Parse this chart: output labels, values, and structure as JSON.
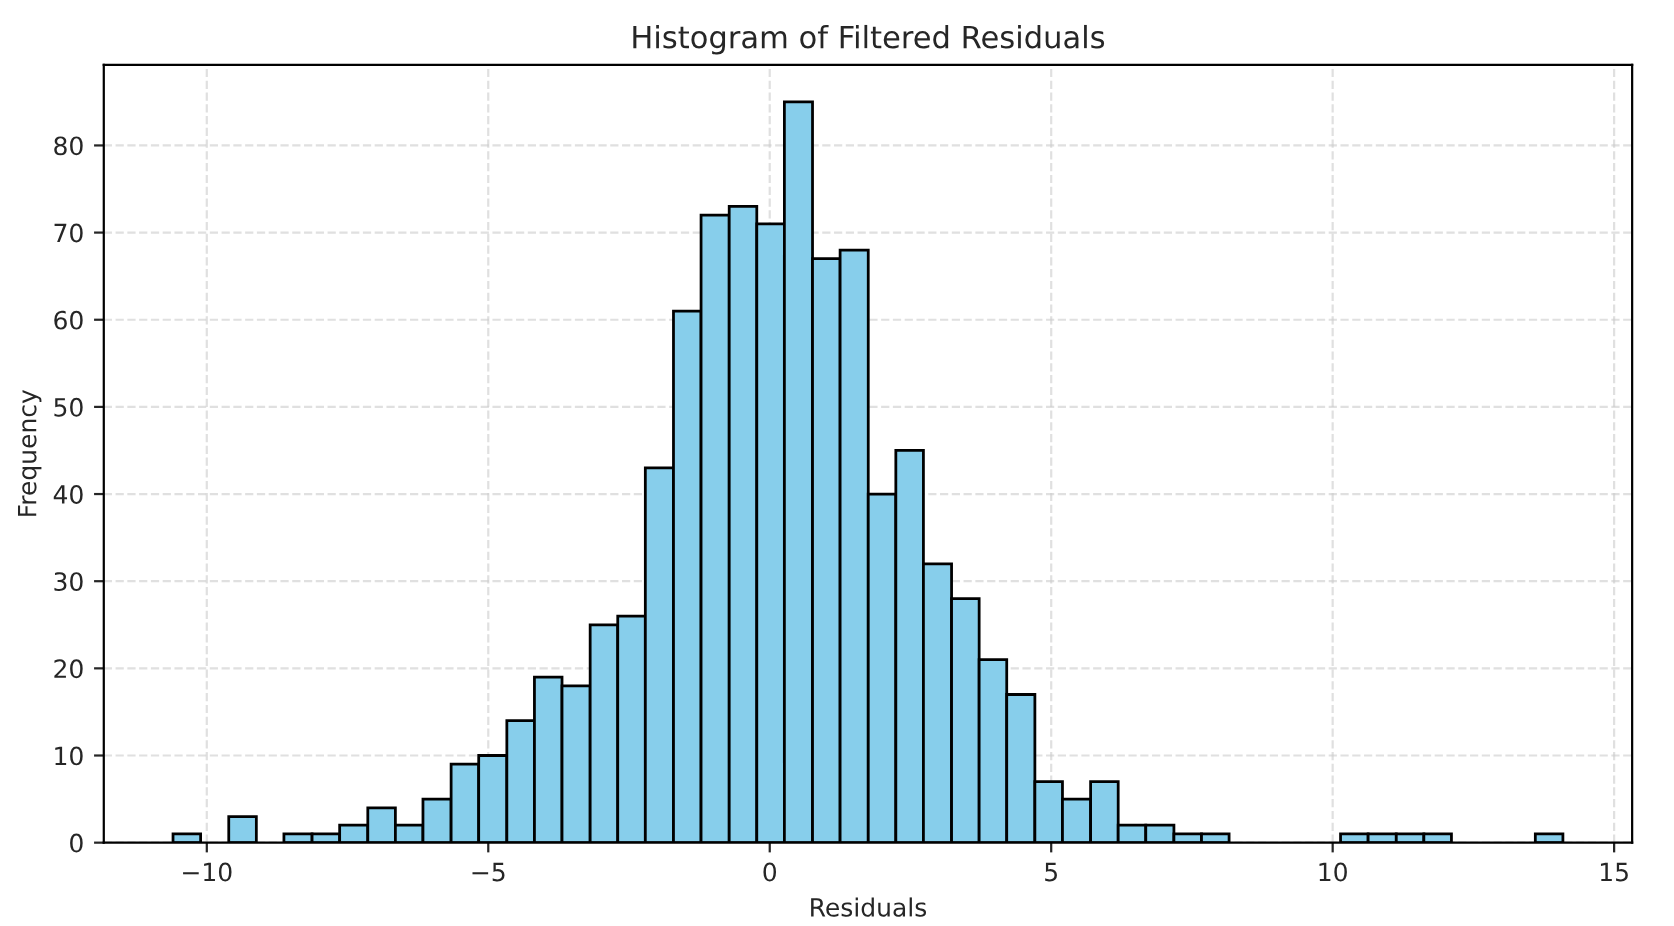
{
  "chart_data": {
    "type": "histogram",
    "title": "Histogram of Filtered Residuals",
    "xlabel": "Residuals",
    "ylabel": "Frequency",
    "bins": [
      -10.6,
      -10.11,
      -9.61,
      -9.12,
      -8.63,
      -8.13,
      -7.64,
      -7.14,
      -6.65,
      -6.16,
      -5.66,
      -5.17,
      -4.67,
      -4.18,
      -3.69,
      -3.19,
      -2.7,
      -2.21,
      -1.71,
      -1.22,
      -0.72,
      -0.23,
      0.26,
      0.76,
      1.25,
      1.75,
      2.24,
      2.73,
      3.23,
      3.72,
      4.21,
      4.71,
      5.2,
      5.7,
      6.19,
      6.68,
      7.18,
      7.67,
      8.16,
      10.14,
      10.63,
      11.13,
      11.62,
      12.11,
      13.6,
      14.09
    ],
    "values": [
      1,
      0,
      3,
      0,
      1,
      1,
      2,
      4,
      2,
      5,
      9,
      10,
      14,
      19,
      18,
      25,
      26,
      43,
      61,
      72,
      73,
      71,
      85,
      67,
      68,
      40,
      45,
      32,
      28,
      21,
      17,
      7,
      5,
      7,
      2,
      2,
      1,
      1,
      0,
      1,
      1,
      1,
      1,
      0,
      1
    ],
    "color": "#87ceeb",
    "xlim": [
      -11.83,
      15.32
    ],
    "ylim": [
      0,
      89.25
    ],
    "xticks": [
      {
        "value": -10,
        "label": "−10"
      },
      {
        "value": -5,
        "label": "−5"
      },
      0,
      5,
      10,
      15
    ],
    "yticks": [
      0,
      10,
      20,
      30,
      40,
      50,
      60,
      70,
      80
    ],
    "grid": true,
    "line_style": "dashed"
  }
}
